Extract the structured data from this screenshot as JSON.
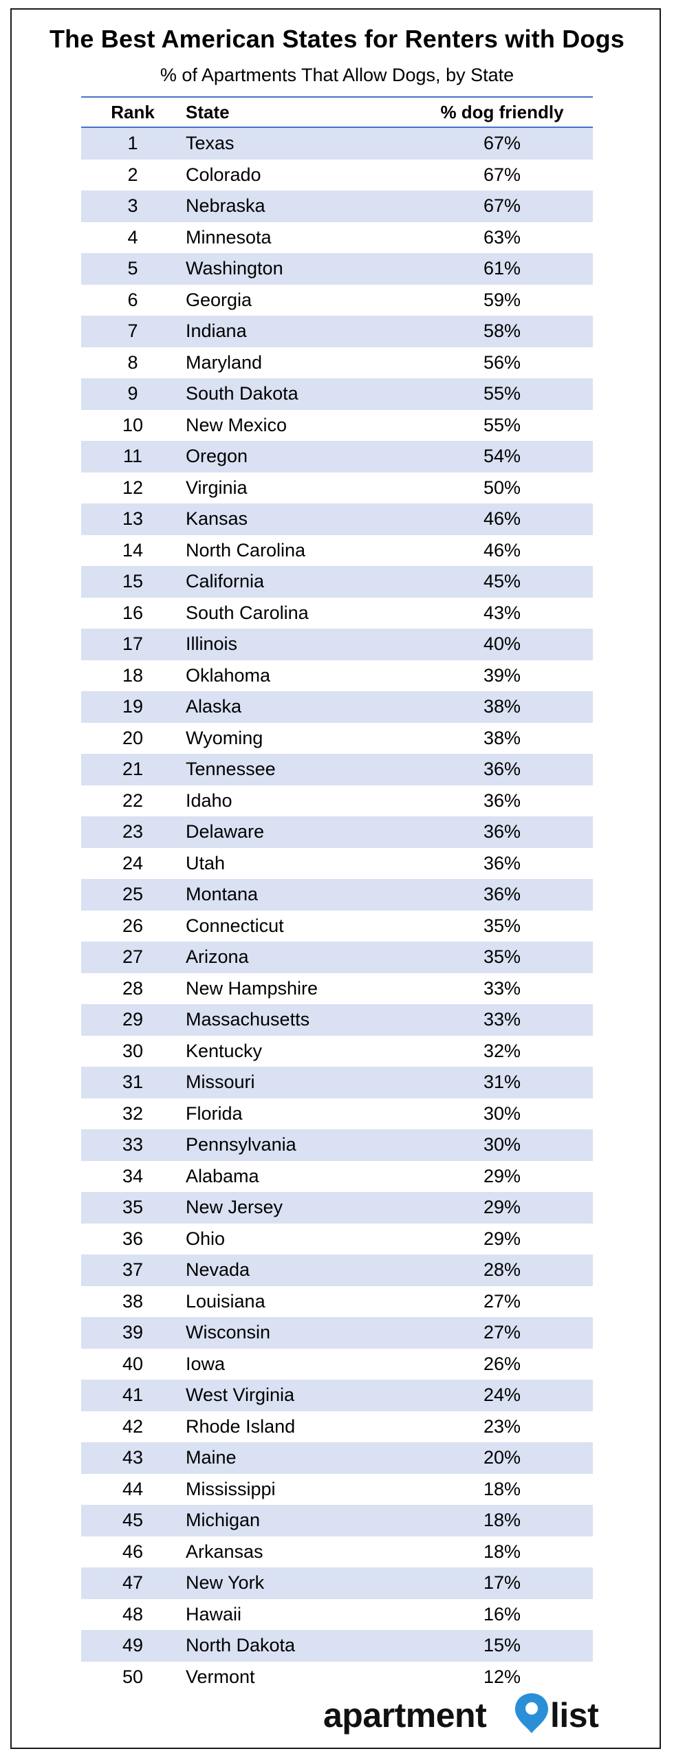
{
  "chart_data": {
    "type": "table",
    "title": "The Best American States for Renters with Dogs",
    "subtitle": "% of Apartments That Allow Dogs, by State",
    "columns": [
      "Rank",
      "State",
      "% dog friendly"
    ],
    "rows": [
      {
        "rank": "1",
        "state": "Texas",
        "pct": "67%"
      },
      {
        "rank": "2",
        "state": "Colorado",
        "pct": "67%"
      },
      {
        "rank": "3",
        "state": "Nebraska",
        "pct": "67%"
      },
      {
        "rank": "4",
        "state": "Minnesota",
        "pct": "63%"
      },
      {
        "rank": "5",
        "state": "Washington",
        "pct": "61%"
      },
      {
        "rank": "6",
        "state": "Georgia",
        "pct": "59%"
      },
      {
        "rank": "7",
        "state": "Indiana",
        "pct": "58%"
      },
      {
        "rank": "8",
        "state": "Maryland",
        "pct": "56%"
      },
      {
        "rank": "9",
        "state": "South Dakota",
        "pct": "55%"
      },
      {
        "rank": "10",
        "state": "New Mexico",
        "pct": "55%"
      },
      {
        "rank": "11",
        "state": "Oregon",
        "pct": "54%"
      },
      {
        "rank": "12",
        "state": "Virginia",
        "pct": "50%"
      },
      {
        "rank": "13",
        "state": "Kansas",
        "pct": "46%"
      },
      {
        "rank": "14",
        "state": "North Carolina",
        "pct": "46%"
      },
      {
        "rank": "15",
        "state": "California",
        "pct": "45%"
      },
      {
        "rank": "16",
        "state": "South Carolina",
        "pct": "43%"
      },
      {
        "rank": "17",
        "state": "Illinois",
        "pct": "40%"
      },
      {
        "rank": "18",
        "state": "Oklahoma",
        "pct": "39%"
      },
      {
        "rank": "19",
        "state": "Alaska",
        "pct": "38%"
      },
      {
        "rank": "20",
        "state": "Wyoming",
        "pct": "38%"
      },
      {
        "rank": "21",
        "state": "Tennessee",
        "pct": "36%"
      },
      {
        "rank": "22",
        "state": "Idaho",
        "pct": "36%"
      },
      {
        "rank": "23",
        "state": "Delaware",
        "pct": "36%"
      },
      {
        "rank": "24",
        "state": "Utah",
        "pct": "36%"
      },
      {
        "rank": "25",
        "state": "Montana",
        "pct": "36%"
      },
      {
        "rank": "26",
        "state": "Connecticut",
        "pct": "35%"
      },
      {
        "rank": "27",
        "state": "Arizona",
        "pct": "35%"
      },
      {
        "rank": "28",
        "state": "New Hampshire",
        "pct": "33%"
      },
      {
        "rank": "29",
        "state": "Massachusetts",
        "pct": "33%"
      },
      {
        "rank": "30",
        "state": "Kentucky",
        "pct": "32%"
      },
      {
        "rank": "31",
        "state": "Missouri",
        "pct": "31%"
      },
      {
        "rank": "32",
        "state": "Florida",
        "pct": "30%"
      },
      {
        "rank": "33",
        "state": "Pennsylvania",
        "pct": "30%"
      },
      {
        "rank": "34",
        "state": "Alabama",
        "pct": "29%"
      },
      {
        "rank": "35",
        "state": "New Jersey",
        "pct": "29%"
      },
      {
        "rank": "36",
        "state": "Ohio",
        "pct": "29%"
      },
      {
        "rank": "37",
        "state": "Nevada",
        "pct": "28%"
      },
      {
        "rank": "38",
        "state": "Louisiana",
        "pct": "27%"
      },
      {
        "rank": "39",
        "state": "Wisconsin",
        "pct": "27%"
      },
      {
        "rank": "40",
        "state": "Iowa",
        "pct": "26%"
      },
      {
        "rank": "41",
        "state": "West Virginia",
        "pct": "24%"
      },
      {
        "rank": "42",
        "state": "Rhode Island",
        "pct": "23%"
      },
      {
        "rank": "43",
        "state": "Maine",
        "pct": "20%"
      },
      {
        "rank": "44",
        "state": "Mississippi",
        "pct": "18%"
      },
      {
        "rank": "45",
        "state": "Michigan",
        "pct": "18%"
      },
      {
        "rank": "46",
        "state": "Arkansas",
        "pct": "18%"
      },
      {
        "rank": "47",
        "state": "New York",
        "pct": "17%"
      },
      {
        "rank": "48",
        "state": "Hawaii",
        "pct": "16%"
      },
      {
        "rank": "49",
        "state": "North Dakota",
        "pct": "15%"
      },
      {
        "rank": "50",
        "state": "Vermont",
        "pct": "12%"
      }
    ]
  },
  "colors": {
    "band": "#d9e1f2",
    "rule": "#4472c4",
    "logo_pin": "#2a8fd6"
  },
  "logo": {
    "word_left": "apartment",
    "word_right": "list",
    "pin_icon": "location-pin-icon"
  }
}
